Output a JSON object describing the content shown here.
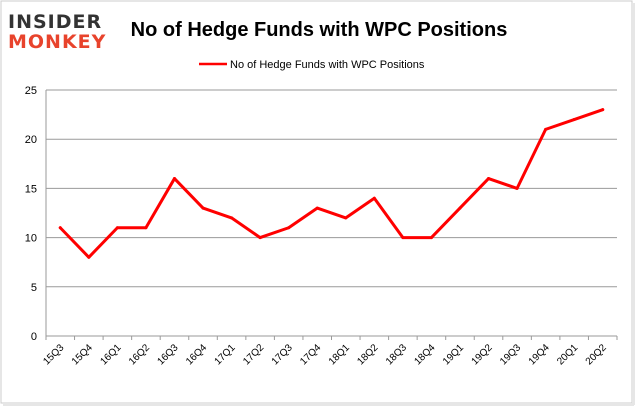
{
  "logo": {
    "line1": "INSIDER",
    "line2": "MONKEY"
  },
  "chart_data": {
    "type": "line",
    "title": "No of Hedge Funds with WPC Positions",
    "xlabel": "",
    "ylabel": "",
    "categories": [
      "15Q3",
      "15Q4",
      "16Q1",
      "16Q2",
      "16Q3",
      "16Q4",
      "17Q1",
      "17Q2",
      "17Q3",
      "17Q4",
      "18Q1",
      "18Q2",
      "18Q3",
      "18Q4",
      "19Q1",
      "19Q2",
      "19Q3",
      "19Q4",
      "20Q1",
      "20Q2"
    ],
    "series": [
      {
        "name": "No of Hedge Funds with WPC Positions",
        "values": [
          11,
          8,
          11,
          11,
          16,
          13,
          12,
          10,
          11,
          13,
          12,
          14,
          10,
          10,
          13,
          16,
          15,
          21,
          22,
          23
        ]
      }
    ],
    "ylim": [
      0,
      25
    ],
    "yticks": [
      0,
      5,
      10,
      15,
      20,
      25
    ],
    "grid": true,
    "legend_position": "top-center",
    "line_color": "#ff0000"
  }
}
